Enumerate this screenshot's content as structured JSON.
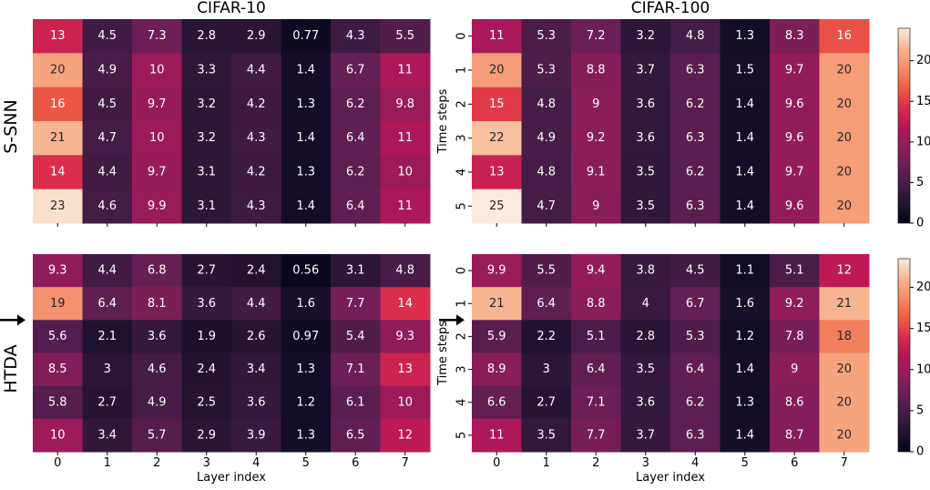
{
  "figure": {
    "row_labels": [
      "S-SNN",
      "HTDA"
    ],
    "colormap": "rocket"
  },
  "chart_data": [
    {
      "type": "heatmap",
      "panel": "top-left",
      "title": "CIFAR-10",
      "xlabel": "",
      "ylabel": "",
      "x_ticks": [
        "0",
        "1",
        "2",
        "3",
        "4",
        "5",
        "6",
        "7"
      ],
      "y_ticks": [],
      "vmin": 0,
      "vmax": 23.5,
      "colorbar": false,
      "values": [
        [
          13,
          4.5,
          7.3,
          2.8,
          2.9,
          0.77,
          4.3,
          5.5
        ],
        [
          20,
          4.9,
          10,
          3.3,
          4.4,
          1.4,
          6.7,
          11
        ],
        [
          16,
          4.5,
          9.7,
          3.2,
          4.2,
          1.3,
          6.2,
          9.8
        ],
        [
          21,
          4.7,
          10,
          3.2,
          4.3,
          1.4,
          6.4,
          11
        ],
        [
          14,
          4.4,
          9.7,
          3.1,
          4.2,
          1.3,
          6.2,
          10
        ],
        [
          23,
          4.6,
          9.9,
          3.1,
          4.3,
          1.4,
          6.4,
          11
        ]
      ]
    },
    {
      "type": "heatmap",
      "panel": "top-right",
      "title": "CIFAR-100",
      "xlabel": "",
      "ylabel": "Time steps",
      "x_ticks": [
        "0",
        "1",
        "2",
        "3",
        "4",
        "5",
        "6",
        "7"
      ],
      "y_ticks": [
        "0",
        "1",
        "2",
        "3",
        "4",
        "5"
      ],
      "vmin": 0,
      "vmax": 24,
      "colorbar": true,
      "colorbar_ticks": [
        0,
        5,
        10,
        15,
        20
      ],
      "values": [
        [
          11,
          5.3,
          7.2,
          3.2,
          4.8,
          1.3,
          8.3,
          16
        ],
        [
          20,
          5.3,
          8.8,
          3.7,
          6.3,
          1.5,
          9.7,
          20
        ],
        [
          15,
          4.8,
          9,
          3.6,
          6.2,
          1.4,
          9.6,
          20
        ],
        [
          22,
          4.9,
          9.2,
          3.6,
          6.3,
          1.4,
          9.6,
          20
        ],
        [
          13,
          4.8,
          9.1,
          3.5,
          6.2,
          1.4,
          9.7,
          20
        ],
        [
          25,
          4.7,
          9,
          3.5,
          6.3,
          1.4,
          9.6,
          20
        ]
      ]
    },
    {
      "type": "heatmap",
      "panel": "bottom-left",
      "title": "",
      "xlabel": "Layer index",
      "ylabel": "",
      "x_ticks": [
        "0",
        "1",
        "2",
        "3",
        "4",
        "5",
        "6",
        "7"
      ],
      "y_ticks": [],
      "vmin": 0,
      "vmax": 23.5,
      "colorbar": false,
      "arrow_row": 2,
      "values": [
        [
          9.3,
          4.4,
          6.8,
          2.7,
          2.4,
          0.56,
          3.1,
          4.8
        ],
        [
          19,
          6.4,
          8.1,
          3.6,
          4.4,
          1.6,
          7.7,
          14
        ],
        [
          5.6,
          2.1,
          3.6,
          1.9,
          2.6,
          0.97,
          5.4,
          9.3
        ],
        [
          8.5,
          3,
          4.6,
          2.4,
          3.4,
          1.3,
          7.1,
          13
        ],
        [
          5.8,
          2.7,
          4.9,
          2.5,
          3.6,
          1.2,
          6.1,
          10
        ],
        [
          10,
          3.4,
          5.7,
          2.9,
          3.9,
          1.3,
          6.5,
          12
        ]
      ]
    },
    {
      "type": "heatmap",
      "panel": "bottom-right",
      "title": "",
      "xlabel": "Layer index",
      "ylabel": "Time steps",
      "x_ticks": [
        "0",
        "1",
        "2",
        "3",
        "4",
        "5",
        "6",
        "7"
      ],
      "y_ticks": [
        "0",
        "1",
        "2",
        "3",
        "4",
        "5"
      ],
      "vmin": 0,
      "vmax": 23.5,
      "colorbar": true,
      "colorbar_ticks": [
        0,
        5,
        10,
        15,
        20
      ],
      "arrow_row": 2,
      "values": [
        [
          9.9,
          5.5,
          9.4,
          3.8,
          4.5,
          1.1,
          5.1,
          12
        ],
        [
          21,
          6.4,
          8.8,
          4,
          6.7,
          1.6,
          9.2,
          21
        ],
        [
          5.9,
          2.2,
          5.1,
          2.8,
          5.3,
          1.2,
          7.8,
          18
        ],
        [
          8.9,
          3,
          6.4,
          3.5,
          6.4,
          1.4,
          9,
          20
        ],
        [
          6.6,
          2.7,
          7.1,
          3.6,
          6.2,
          1.3,
          8.6,
          20
        ],
        [
          11,
          3.5,
          7.7,
          3.7,
          6.3,
          1.4,
          8.7,
          20
        ]
      ]
    }
  ]
}
